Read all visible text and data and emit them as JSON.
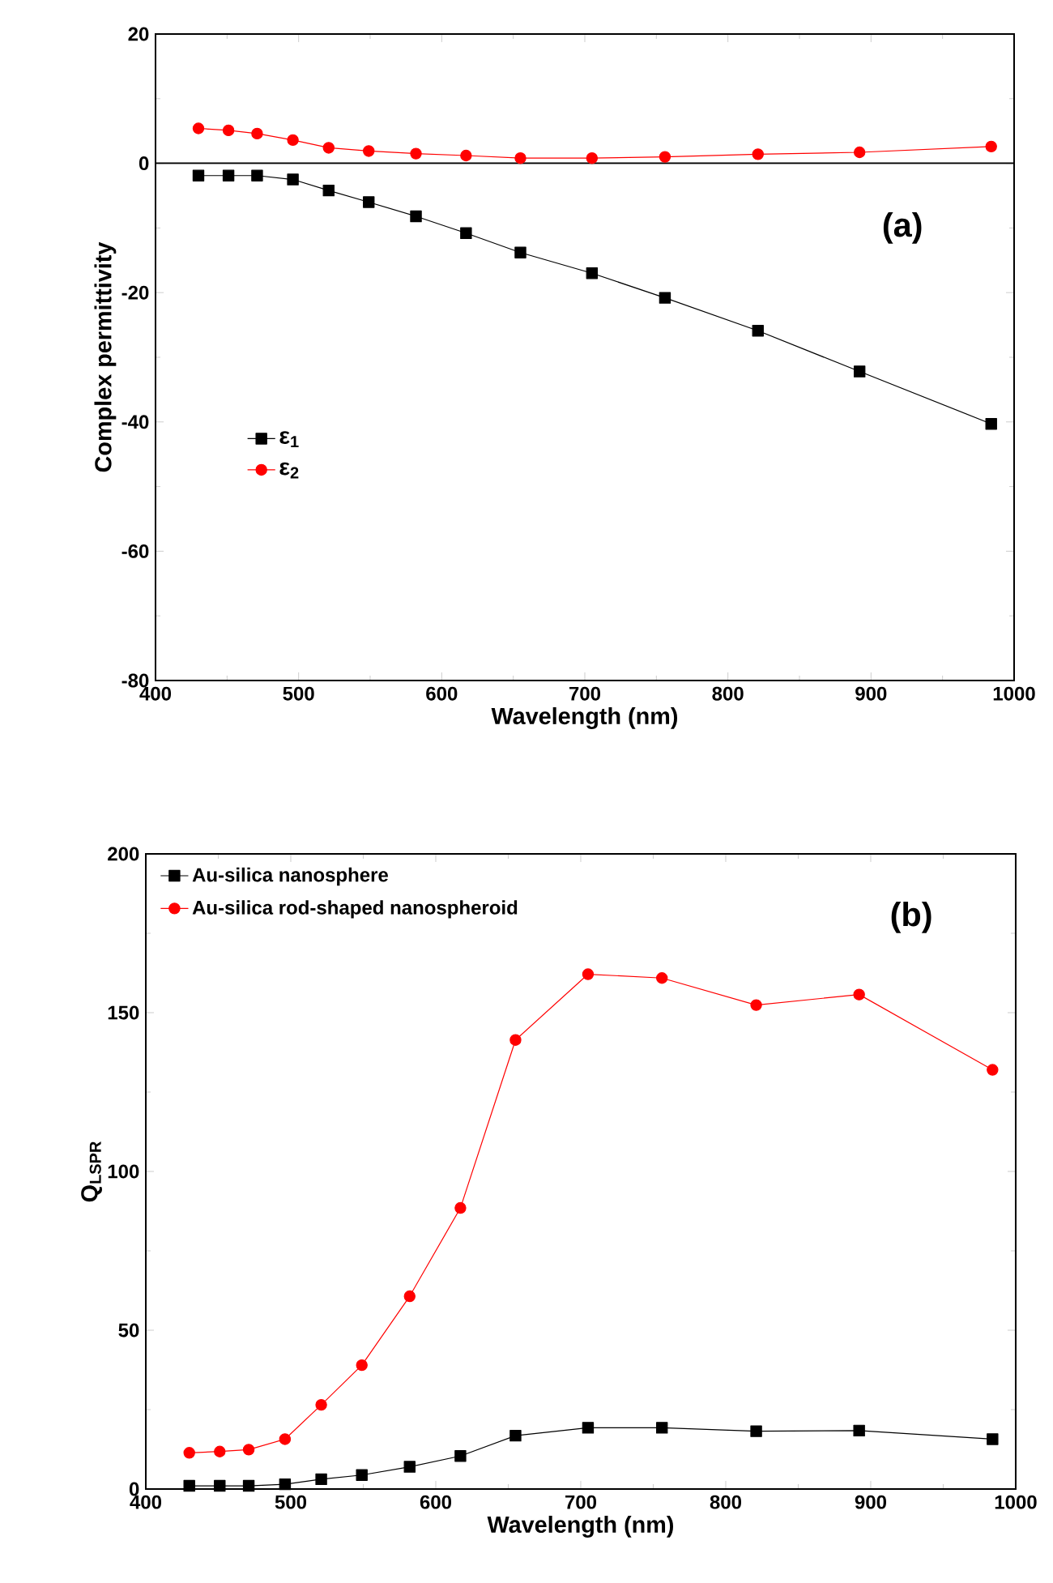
{
  "chart_data": [
    {
      "type": "line",
      "xlabel": "Wavelength (nm)",
      "ylabel": "Complex permittivity",
      "xlim": [
        400,
        1000
      ],
      "ylim": [
        -80,
        20
      ],
      "xticks": [
        400,
        500,
        600,
        700,
        800,
        900,
        1000
      ],
      "yticks": [
        -80,
        -60,
        -40,
        -20,
        0,
        20
      ],
      "legend": "left",
      "annotations": [
        "(a)"
      ],
      "ref_lines": [
        {
          "axis": "y",
          "value": 0,
          "color": "#000000"
        }
      ],
      "x": [
        430,
        451,
        471,
        496,
        521,
        549,
        582,
        617,
        655,
        705,
        756,
        821,
        892,
        984
      ],
      "series": [
        {
          "name": "ε$_{1}$",
          "color": "#000000",
          "marker": "square",
          "values": [
            -1.9,
            -1.9,
            -1.9,
            -2.5,
            -4.2,
            -6.0,
            -8.2,
            -10.8,
            -13.8,
            -17.0,
            -20.8,
            -25.9,
            -32.2,
            -40.3
          ]
        },
        {
          "name": "ε$_{2}$",
          "color": "#ff0000",
          "marker": "circle",
          "values": [
            5.4,
            5.1,
            4.6,
            3.6,
            2.4,
            1.9,
            1.5,
            1.2,
            0.8,
            0.8,
            1.0,
            1.4,
            1.7,
            2.6
          ]
        }
      ]
    },
    {
      "type": "line",
      "xlabel": "Wavelength (nm)",
      "ylabel": "Q$_{LSPR}$",
      "xlim": [
        400,
        1000
      ],
      "ylim": [
        0,
        200
      ],
      "xticks": [
        400,
        500,
        600,
        700,
        800,
        900,
        1000
      ],
      "yticks": [
        0,
        50,
        100,
        150,
        200
      ],
      "legend": "top left",
      "annotations": [
        "(b)"
      ],
      "x": [
        430,
        451,
        471,
        496,
        521,
        549,
        582,
        617,
        655,
        705,
        756,
        821,
        892,
        984
      ],
      "series": [
        {
          "name": "Au-silica nanosphere",
          "color": "#000000",
          "marker": "square",
          "values": [
            1.0,
            1.0,
            1.0,
            1.5,
            3.1,
            4.4,
            7.0,
            10.4,
            16.8,
            19.3,
            19.3,
            18.2,
            18.4,
            15.7
          ]
        },
        {
          "name": "Au-silica rod-shaped nanospheroid",
          "color": "#ff0000",
          "marker": "circle",
          "values": [
            11.4,
            11.8,
            12.4,
            15.7,
            26.5,
            39.0,
            60.7,
            88.5,
            141.4,
            162.1,
            160.9,
            152.4,
            155.7,
            132.0
          ]
        }
      ]
    }
  ]
}
